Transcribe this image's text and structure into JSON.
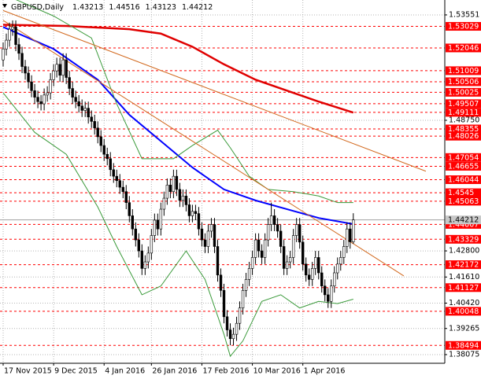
{
  "chart_data": {
    "type": "candlestick",
    "title": "GBPUSD,Daily",
    "categories": [
      "17 Nov 2015",
      null,
      null,
      null,
      null,
      null,
      null,
      null,
      null,
      null,
      null,
      null,
      null,
      null,
      null,
      null,
      "9 Dec 2015",
      null,
      null,
      null,
      null,
      null,
      null,
      null,
      null,
      null,
      null,
      null,
      null,
      null,
      null,
      null,
      "4 Jan 2016",
      null,
      null,
      null,
      null,
      null,
      null,
      null,
      null,
      null,
      null,
      null,
      null,
      null,
      null,
      "26 Jan 2016",
      null,
      null,
      null,
      null,
      null,
      null,
      null,
      null,
      null,
      null,
      null,
      null,
      null,
      null,
      null,
      "17 Feb 2016",
      null,
      null,
      null,
      null,
      null,
      null,
      null,
      null,
      null,
      null,
      null,
      null,
      null,
      null,
      null,
      "10 Mar 2016",
      null,
      null,
      null,
      null,
      null,
      null,
      null,
      null,
      null,
      null,
      null,
      null,
      null,
      null,
      null,
      "1 Apr 2016",
      null,
      null,
      null,
      null,
      null,
      null,
      null,
      null,
      null,
      null,
      null,
      null,
      null,
      null,
      null,
      null
    ],
    "open": [
      1.515,
      1.52,
      1.524,
      1.529,
      1.53,
      1.522,
      1.518,
      1.512,
      1.509,
      1.505,
      1.501,
      1.498,
      1.496,
      1.495,
      1.499,
      1.5,
      1.506,
      1.51,
      1.513,
      1.508,
      1.515,
      1.507,
      1.502,
      1.498,
      1.496,
      1.494,
      1.492,
      1.493,
      1.489,
      1.487,
      1.484,
      1.48,
      1.476,
      1.472,
      1.47,
      1.465,
      1.462,
      1.46,
      1.457,
      1.455,
      1.45,
      1.444,
      1.438,
      1.433,
      1.428,
      1.42,
      1.423,
      1.427,
      1.435,
      1.442,
      1.438,
      1.447,
      1.452,
      1.458,
      1.455,
      1.462,
      1.456,
      1.451,
      1.453,
      1.449,
      1.444,
      1.446,
      1.445,
      1.438,
      1.433,
      1.43,
      1.437,
      1.44,
      1.43,
      1.417,
      1.41,
      1.398,
      1.392,
      1.388,
      1.39,
      1.395,
      1.402,
      1.41,
      1.415,
      1.42,
      1.425,
      1.433,
      1.428,
      1.425,
      1.433,
      1.44,
      1.444,
      1.44,
      1.437,
      1.43,
      1.42,
      1.423,
      1.425,
      1.435,
      1.44,
      1.432,
      1.422,
      1.417,
      1.415,
      1.42,
      1.425,
      1.418,
      1.412,
      1.408,
      1.405,
      1.412,
      1.418,
      1.422,
      1.425,
      1.43,
      1.438,
      1.43213
    ],
    "high": [
      1.523,
      1.527,
      1.532,
      1.533,
      1.533,
      1.525,
      1.521,
      1.515,
      1.512,
      1.508,
      1.504,
      1.501,
      1.499,
      1.502,
      1.503,
      1.509,
      1.513,
      1.516,
      1.516,
      1.518,
      1.518,
      1.51,
      1.505,
      1.501,
      1.499,
      1.497,
      1.496,
      1.496,
      1.492,
      1.49,
      1.487,
      1.483,
      1.479,
      1.475,
      1.473,
      1.468,
      1.465,
      1.463,
      1.46,
      1.458,
      1.453,
      1.447,
      1.441,
      1.436,
      1.431,
      1.426,
      1.43,
      1.438,
      1.445,
      1.445,
      1.45,
      1.455,
      1.461,
      1.461,
      1.465,
      1.465,
      1.459,
      1.456,
      1.456,
      1.452,
      1.449,
      1.449,
      1.448,
      1.441,
      1.436,
      1.44,
      1.443,
      1.443,
      1.433,
      1.42,
      1.413,
      1.401,
      1.395,
      1.393,
      1.398,
      1.405,
      1.413,
      1.418,
      1.423,
      1.428,
      1.436,
      1.436,
      1.431,
      1.436,
      1.443,
      1.45,
      1.447,
      1.443,
      1.44,
      1.433,
      1.426,
      1.428,
      1.438,
      1.443,
      1.443,
      1.435,
      1.425,
      1.42,
      1.423,
      1.428,
      1.428,
      1.421,
      1.415,
      1.411,
      1.415,
      1.421,
      1.425,
      1.428,
      1.433,
      1.441,
      1.441,
      1.44516
    ],
    "low": [
      1.512,
      1.517,
      1.521,
      1.526,
      1.519,
      1.515,
      1.509,
      1.506,
      1.502,
      1.498,
      1.495,
      1.493,
      1.492,
      1.492,
      1.496,
      1.497,
      1.503,
      1.507,
      1.505,
      1.505,
      1.504,
      1.499,
      1.495,
      1.493,
      1.491,
      1.489,
      1.489,
      1.486,
      1.484,
      1.481,
      1.477,
      1.473,
      1.469,
      1.467,
      1.462,
      1.459,
      1.457,
      1.454,
      1.452,
      1.447,
      1.441,
      1.435,
      1.43,
      1.425,
      1.417,
      1.417,
      1.42,
      1.424,
      1.432,
      1.435,
      1.435,
      1.444,
      1.449,
      1.452,
      1.452,
      1.453,
      1.448,
      1.448,
      1.446,
      1.441,
      1.441,
      1.442,
      1.435,
      1.43,
      1.427,
      1.427,
      1.434,
      1.427,
      1.414,
      1.407,
      1.395,
      1.389,
      1.385,
      1.385,
      1.387,
      1.392,
      1.399,
      1.407,
      1.412,
      1.417,
      1.422,
      1.425,
      1.422,
      1.422,
      1.43,
      1.437,
      1.437,
      1.434,
      1.427,
      1.417,
      1.417,
      1.42,
      1.422,
      1.432,
      1.429,
      1.419,
      1.414,
      1.412,
      1.412,
      1.417,
      1.415,
      1.409,
      1.405,
      1.402,
      1.402,
      1.409,
      1.415,
      1.419,
      1.422,
      1.427,
      1.429,
      1.43123
    ],
    "close": [
      1.52,
      1.524,
      1.529,
      1.53,
      1.522,
      1.518,
      1.512,
      1.509,
      1.505,
      1.501,
      1.498,
      1.496,
      1.495,
      1.499,
      1.5,
      1.506,
      1.51,
      1.513,
      1.508,
      1.515,
      1.507,
      1.502,
      1.498,
      1.496,
      1.494,
      1.492,
      1.493,
      1.489,
      1.487,
      1.484,
      1.48,
      1.476,
      1.472,
      1.47,
      1.465,
      1.462,
      1.46,
      1.457,
      1.455,
      1.45,
      1.444,
      1.438,
      1.433,
      1.428,
      1.42,
      1.423,
      1.427,
      1.435,
      1.442,
      1.438,
      1.447,
      1.452,
      1.458,
      1.455,
      1.462,
      1.456,
      1.451,
      1.453,
      1.449,
      1.444,
      1.446,
      1.445,
      1.438,
      1.433,
      1.43,
      1.437,
      1.44,
      1.43,
      1.417,
      1.41,
      1.398,
      1.392,
      1.388,
      1.39,
      1.395,
      1.402,
      1.41,
      1.415,
      1.42,
      1.425,
      1.433,
      1.428,
      1.425,
      1.433,
      1.44,
      1.444,
      1.44,
      1.437,
      1.43,
      1.42,
      1.423,
      1.425,
      1.435,
      1.44,
      1.432,
      1.422,
      1.417,
      1.415,
      1.42,
      1.425,
      1.418,
      1.412,
      1.408,
      1.405,
      1.412,
      1.418,
      1.422,
      1.425,
      1.43,
      1.438,
      1.43213,
      1.44212
    ],
    "up_color": "#ffffff",
    "down_color": "#000000",
    "xlim": [
      -1,
      140
    ],
    "ylim": [
      1.3768,
      1.5423
    ],
    "yticks": [
      1.53551,
      {
        "value": 1.4875,
        "label": "1.48750"
      },
      {
        "value": 1.428,
        "label": "1.42800"
      },
      {
        "value": 1.4161,
        "label": "1.41610"
      },
      {
        "value": 1.4042,
        "label": "1.40420"
      },
      1.39265,
      1.38075
    ],
    "grid": true,
    "levels": [
      1.53029,
      1.52046,
      1.51009,
      1.50506,
      1.50025,
      1.49507,
      1.49111,
      1.48355,
      1.48026,
      1.47054,
      1.46655,
      1.46044,
      1.4545,
      1.45063,
      1.44007,
      1.43329,
      1.42172,
      1.41127,
      1.40048,
      1.38494
    ],
    "level_color": "#ff0000",
    "lines": [
      {
        "color": "#0000ff",
        "width": 2,
        "x": [
          0,
          16,
          30,
          40,
          50,
          60,
          70,
          80,
          90,
          100,
          111
        ],
        "values": [
          1.53,
          1.52,
          1.506,
          1.49,
          1.478,
          1.466,
          1.456,
          1.451,
          1.447,
          1.443,
          1.4402
        ]
      },
      {
        "color": "#e00000",
        "width": 2.5,
        "x": [
          0,
          20,
          40,
          50,
          60,
          70,
          80,
          90,
          100,
          111
        ],
        "values": [
          1.531,
          1.5305,
          1.529,
          1.527,
          1.521,
          1.513,
          1.506,
          1.501,
          1.496,
          1.491
        ]
      },
      {
        "color": "#3a9a3a",
        "width": 1,
        "x": [
          0,
          16,
          28,
          36,
          44,
          54,
          60,
          68,
          72,
          78,
          84,
          92,
          100,
          106,
          111
        ],
        "values": [
          1.545,
          1.535,
          1.525,
          1.495,
          1.47,
          1.47,
          1.476,
          1.483,
          1.475,
          1.462,
          1.456,
          1.455,
          1.453,
          1.45,
          1.45
        ]
      },
      {
        "color": "#3a9a3a",
        "width": 1,
        "x": [
          0,
          10,
          20,
          30,
          36,
          44,
          50,
          58,
          64,
          70,
          72,
          76,
          82,
          88,
          94,
          100,
          106,
          111
        ],
        "values": [
          1.5,
          1.482,
          1.472,
          1.448,
          1.43,
          1.408,
          1.412,
          1.428,
          1.415,
          1.39,
          1.38,
          1.387,
          1.405,
          1.408,
          1.402,
          1.405,
          1.404,
          1.406
        ]
      },
      {
        "color": "#d2691e",
        "width": 1,
        "x": [
          0,
          134
        ],
        "values": [
          1.5375,
          1.4643
        ]
      },
      {
        "color": "#d2691e",
        "width": 1,
        "x": [
          0,
          127
        ],
        "values": [
          1.533,
          1.4166
        ]
      }
    ]
  }
}
